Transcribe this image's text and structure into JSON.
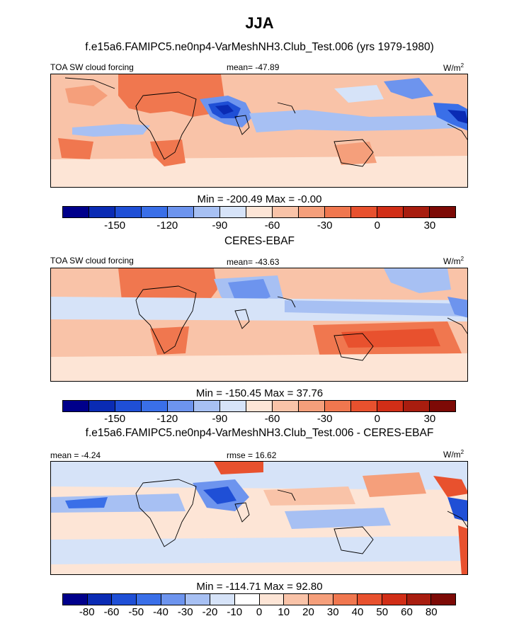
{
  "title": "JJA",
  "panels": [
    {
      "heading": "f.e15a6.FAMIPC5.ne0np4-VarMeshNH3.Club_Test.006 (yrs 1979-1980)",
      "left_label": "TOA SW cloud forcing",
      "center_label": "mean= -47.89",
      "units": "W/m",
      "units_sup": "2",
      "minmax": "Min = -200.49 Max =  -0.00",
      "colorbar_ticks": [
        "-150",
        "-120",
        "-90",
        "-60",
        "-30",
        "0",
        "30"
      ],
      "colors": [
        "#00008b",
        "#0a2bb4",
        "#1f4fd6",
        "#3a6fe8",
        "#6d94ee",
        "#a7c0f3",
        "#d6e3f8",
        "#fde5d6",
        "#f9c3a8",
        "#f59f7b",
        "#f0774f",
        "#e8512e",
        "#d12e17",
        "#a81d0f",
        "#7d0a06"
      ]
    },
    {
      "heading": "CERES-EBAF",
      "left_label": "TOA SW cloud forcing",
      "center_label": "mean= -43.63",
      "units": "W/m",
      "units_sup": "2",
      "minmax": "Min = -150.45 Max =  37.76",
      "colorbar_ticks": [
        "-150",
        "-120",
        "-90",
        "-60",
        "-30",
        "0",
        "30"
      ],
      "colors": [
        "#00008b",
        "#0a2bb4",
        "#1f4fd6",
        "#3a6fe8",
        "#6d94ee",
        "#a7c0f3",
        "#d6e3f8",
        "#fde5d6",
        "#f9c3a8",
        "#f59f7b",
        "#f0774f",
        "#e8512e",
        "#d12e17",
        "#a81d0f",
        "#7d0a06"
      ]
    },
    {
      "heading": "f.e15a6.FAMIPC5.ne0np4-VarMeshNH3.Club_Test.006 - CERES-EBAF",
      "left_label": "mean =  -4.24",
      "center_label": "rmse =  16.62",
      "units": "W/m",
      "units_sup": "2",
      "minmax": "Min = -114.71 Max =  92.80",
      "colorbar_ticks": [
        "-80",
        "-60",
        "-50",
        "-40",
        "-30",
        "-20",
        "-10",
        "0",
        "10",
        "20",
        "30",
        "40",
        "50",
        "60",
        "80"
      ],
      "colors": [
        "#00008b",
        "#0a2bb4",
        "#1f4fd6",
        "#3a6fe8",
        "#6d94ee",
        "#a7c0f3",
        "#d6e3f8",
        "#ffffff",
        "#fde5d6",
        "#f9c3a8",
        "#f59f7b",
        "#f0774f",
        "#e8512e",
        "#d12e17",
        "#a81d0f",
        "#7d0a06"
      ]
    }
  ]
}
